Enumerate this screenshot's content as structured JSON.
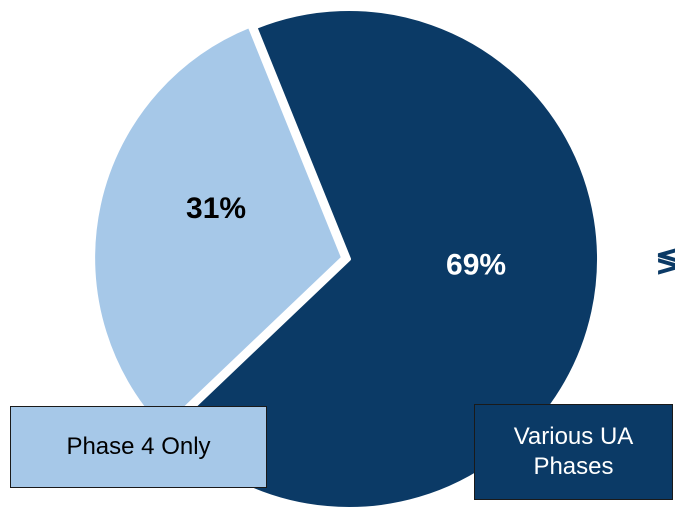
{
  "chart_data": {
    "type": "pie",
    "slices": [
      {
        "label": "Various UA\nPhases",
        "value": 69,
        "value_label": "69%",
        "color": "#0b3a66",
        "label_color": "#ffffff"
      },
      {
        "label": "Phase 4 Only",
        "value": 31,
        "value_label": "31%",
        "color": "#a6c8e8",
        "label_color": "#000000"
      }
    ],
    "start_angle_deg": -112,
    "slice_border_color": "#ffffff",
    "exploded_slice": "Phase 4 Only",
    "legend_placement": "bottom-boxes"
  },
  "edge_glyph": "≶"
}
